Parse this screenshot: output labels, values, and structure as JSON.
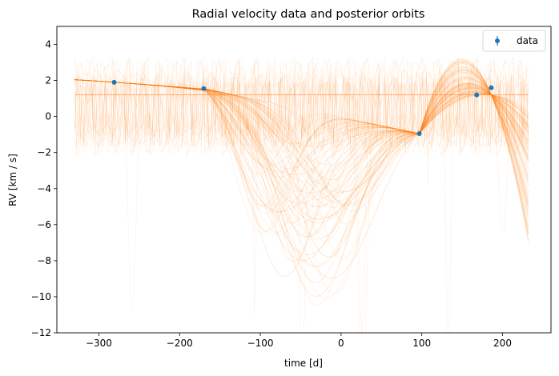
{
  "chart_data": {
    "type": "scatter",
    "title": "Radial velocity data and posterior orbits",
    "xlabel": "time [d]",
    "ylabel": "RV [km / s]",
    "xlim": [
      -352,
      260
    ],
    "ylim": [
      -12,
      5
    ],
    "xticks": [
      -300,
      -200,
      -100,
      0,
      100,
      200
    ],
    "yticks": [
      4,
      2,
      0,
      -2,
      -4,
      -6,
      -8,
      -10,
      -12
    ],
    "xtick_labels": [
      "−300",
      "−200",
      "−100",
      "0",
      "100",
      "200"
    ],
    "ytick_labels": [
      "4",
      "2",
      "0",
      "−2",
      "−4",
      "−6",
      "−8",
      "−10",
      "−12"
    ],
    "grid": false,
    "legend": {
      "position": "top-right",
      "entries": [
        "data"
      ]
    },
    "series": [
      {
        "name": "data",
        "kind": "errorbar-points",
        "x": [
          -281,
          -170,
          97,
          168,
          186
        ],
        "y": [
          1.9,
          1.55,
          -0.95,
          1.2,
          1.6
        ],
        "yerr": [
          0.05,
          0.05,
          0.05,
          0.05,
          0.05
        ]
      }
    ],
    "overlay": {
      "kind": "posterior orbit samples",
      "x_range": [
        -330,
        232
      ],
      "line_style": "thin, semi-transparent"
    },
    "colors": {
      "data": "#1f77b4",
      "posterior": "#ff7f0e"
    }
  }
}
